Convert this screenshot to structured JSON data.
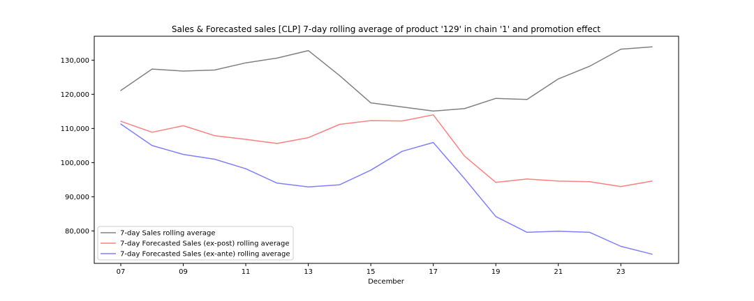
{
  "chart_data": {
    "type": "line",
    "title": "Sales & Forecasted sales [CLP] 7-day rolling average of product '129' in chain '1' and promotion effect",
    "xlabel": "December",
    "ylabel": "",
    "x": [
      "07",
      "08",
      "09",
      "10",
      "11",
      "12",
      "13",
      "14",
      "15",
      "16",
      "17",
      "18",
      "19",
      "20",
      "21",
      "22",
      "23",
      "24"
    ],
    "x_tick_labels": [
      "07",
      "09",
      "11",
      "13",
      "15",
      "17",
      "19",
      "21",
      "23"
    ],
    "y_tick_labels": [
      "80,000",
      "90,000",
      "100,000",
      "110,000",
      "120,000",
      "130,000"
    ],
    "y_ticks": [
      80000,
      90000,
      100000,
      110000,
      120000,
      130000
    ],
    "ylim": [
      70500,
      137000
    ],
    "grid": false,
    "legend_position": "lower-left",
    "series": [
      {
        "name": "7-day Sales rolling average",
        "color": "#808080",
        "values": [
          121100,
          127400,
          126800,
          127100,
          129200,
          130600,
          132800,
          125500,
          117500,
          116300,
          115100,
          115800,
          118800,
          118500,
          124500,
          128200,
          133200,
          133900
        ]
      },
      {
        "name": "7-day Forecasted Sales (ex-post) rolling average",
        "color": "#ff7f7f",
        "values": [
          112100,
          108900,
          110800,
          107900,
          106800,
          105600,
          107300,
          111200,
          112300,
          112200,
          114000,
          101900,
          94200,
          95200,
          94600,
          94400,
          93000,
          94600
        ]
      },
      {
        "name": "7-day Forecasted Sales (ex-ante) rolling average",
        "color": "#7f7fff",
        "values": [
          111300,
          105000,
          102400,
          101000,
          98200,
          94000,
          92900,
          93500,
          97800,
          103300,
          105900,
          95300,
          84200,
          79600,
          79900,
          79600,
          75500,
          73200
        ]
      }
    ]
  }
}
